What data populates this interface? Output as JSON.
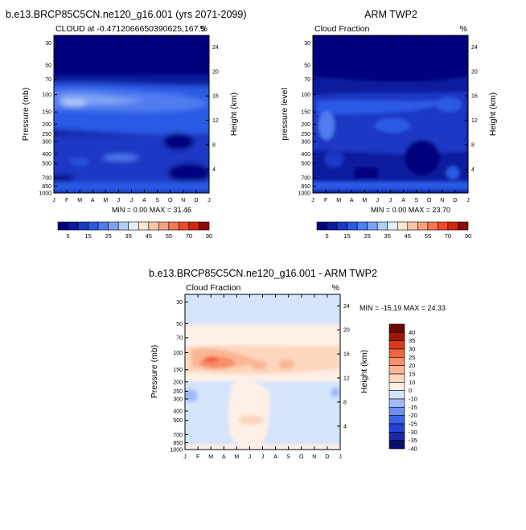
{
  "months": [
    "J",
    "F",
    "M",
    "A",
    "M",
    "J",
    "J",
    "A",
    "S",
    "O",
    "N",
    "D",
    "J"
  ],
  "pressure_ticks": [
    "30",
    "50",
    "70",
    "100",
    "150",
    "200",
    "250",
    "300",
    "400",
    "500",
    "700",
    "850",
    "1000"
  ],
  "height_ticks": [
    "24",
    "20",
    "16",
    "12",
    "8",
    "4"
  ],
  "colors": {
    "abs_palette": [
      "#00007f",
      "#0a1c9e",
      "#1a39c4",
      "#2c5ae6",
      "#4f7cf0",
      "#7ea3f5",
      "#b3cdf8",
      "#e6eefb",
      "#fde5d2",
      "#fbc6a6",
      "#f7a07c",
      "#f47652",
      "#ef4a2c",
      "#d42712",
      "#8f0a03"
    ],
    "diff_palette": [
      "#08106e",
      "#1a2aa5",
      "#2342d2",
      "#3b63e6",
      "#6c8ff0",
      "#9fbaf6",
      "#d4e4fb",
      "#fef0e6",
      "#fdd6bd",
      "#fbb694",
      "#f8906a",
      "#f06440",
      "#d93a1c",
      "#a01808",
      "#6b0602"
    ],
    "abs_field_base": "#0a1c9e"
  },
  "panels": {
    "model": {
      "title": "b.e13.BRCP85C5CN.ne120_g16.001 (yrs 2071-2099)",
      "left_label": "CLOUD at -0.4712066650390625,167.5",
      "right_label": "%",
      "ylabel": "Pressure (mb)",
      "y2label": "Height (km)",
      "stats": "MIN =   0.00 MAX =  31.46",
      "colorbar_labels": [
        "5",
        "15",
        "25",
        "35",
        "45",
        "55",
        "70",
        "90"
      ]
    },
    "obs": {
      "title": "ARM TWP2",
      "left_label": "Cloud Fraction",
      "right_label": "%",
      "ylabel": "pressure level",
      "y2label": "Height (km)",
      "stats": "MIN =   0.00 MAX =  23.70",
      "colorbar_labels": [
        "5",
        "15",
        "25",
        "35",
        "45",
        "55",
        "70",
        "90"
      ]
    },
    "diff": {
      "title": "b.e13.BRCP85C5CN.ne120_g16.001 - ARM TWP2",
      "left_label": "Cloud Fraction",
      "right_label": "%",
      "ylabel": "Pressure (mb)",
      "y2label": "Height (km)",
      "stats": "MIN = -15.19 MAX =  24.33",
      "colorbar_labels": [
        "40",
        "35",
        "30",
        "25",
        "20",
        "15",
        "10",
        "0",
        "-10",
        "-15",
        "-20",
        "-25",
        "-30",
        "-35",
        "-40"
      ]
    }
  },
  "chart_data": [
    {
      "type": "heatmap",
      "title": "b.e13.BRCP85C5CN.ne120_g16.001 (yrs 2071-2099)",
      "subtitle": "CLOUD at -0.4712066650390625,167.5",
      "units": "%",
      "xlabel": "",
      "ylabel": "Pressure (mb)",
      "y2label": "Height (km)",
      "x_categories": [
        "J",
        "F",
        "M",
        "A",
        "M",
        "J",
        "J",
        "A",
        "S",
        "O",
        "N",
        "D",
        "J"
      ],
      "y_levels_mb": [
        30,
        50,
        70,
        100,
        150,
        200,
        250,
        300,
        400,
        500,
        700,
        850,
        1000
      ],
      "height_km": [
        24,
        20,
        16,
        12,
        8,
        4
      ],
      "levels": [
        5,
        10,
        15,
        20,
        25,
        30,
        35,
        40,
        45,
        50,
        55,
        60,
        70,
        80,
        90
      ],
      "min": 0.0,
      "max": 31.46,
      "field_regions": [
        {
          "feature": "upper layer 30-70 mb",
          "value": 2
        },
        {
          "feature": "cloud band near 100-150 mb, max Feb-Apr",
          "value": 28
        },
        {
          "feature": "mid troposphere 200-700 mb",
          "value": 12
        },
        {
          "feature": "minimum near 400 mb Sep-Oct",
          "value": 3
        },
        {
          "feature": "minimum near 700 mb Nov-Dec",
          "value": 3
        },
        {
          "feature": "low cloud near 850 mb",
          "value": 20
        }
      ]
    },
    {
      "type": "heatmap",
      "title": "ARM TWP2",
      "subtitle": "Cloud Fraction",
      "units": "%",
      "xlabel": "",
      "ylabel": "pressure level",
      "y2label": "Height (km)",
      "x_categories": [
        "J",
        "F",
        "M",
        "A",
        "M",
        "J",
        "J",
        "A",
        "S",
        "O",
        "N",
        "D",
        "J"
      ],
      "y_levels_mb": [
        30,
        50,
        70,
        100,
        150,
        200,
        250,
        300,
        400,
        500,
        700,
        850,
        1000
      ],
      "height_km": [
        24,
        20,
        16,
        12,
        8,
        4
      ],
      "levels": [
        5,
        10,
        15,
        20,
        25,
        30,
        35,
        40,
        45,
        50,
        55,
        60,
        70,
        80,
        90
      ],
      "min": 0.0,
      "max": 23.7,
      "field_regions": [
        {
          "feature": "upper layer 30-70 mb",
          "value": 1
        },
        {
          "feature": "cloud band 100-300 mb",
          "value": 15
        },
        {
          "feature": "local maxima near 150-200 mb Feb and Jul-Aug",
          "value": 22
        },
        {
          "feature": "mid troposphere 300-700 mb",
          "value": 10
        },
        {
          "feature": "minima near 400-700 mb Sep-Nov",
          "value": 4
        },
        {
          "feature": "low cloud near 850-1000 mb",
          "value": 14
        }
      ]
    },
    {
      "type": "heatmap",
      "title": "b.e13.BRCP85C5CN.ne120_g16.001 - ARM TWP2",
      "subtitle": "Cloud Fraction",
      "units": "%",
      "xlabel": "",
      "ylabel": "Pressure (mb)",
      "y2label": "Height (km)",
      "x_categories": [
        "J",
        "F",
        "M",
        "A",
        "M",
        "J",
        "J",
        "A",
        "S",
        "O",
        "N",
        "D",
        "J"
      ],
      "y_levels_mb": [
        30,
        50,
        70,
        100,
        150,
        200,
        250,
        300,
        400,
        500,
        700,
        850,
        1000
      ],
      "height_km": [
        24,
        20,
        16,
        12,
        8,
        4
      ],
      "levels": [
        -40,
        -35,
        -30,
        -25,
        -20,
        -15,
        -10,
        0,
        10,
        15,
        20,
        25,
        30,
        35,
        40
      ],
      "min": -15.19,
      "max": 24.33,
      "field_regions": [
        {
          "feature": "upper layer 30-50 mb",
          "value": -2
        },
        {
          "feature": "layer 50-100 mb",
          "value": 3
        },
        {
          "feature": "positive band 100-150 mb, max Mar-Apr",
          "value": 22
        },
        {
          "feature": "secondary maxima near 120 mb Jun-Aug",
          "value": 15
        },
        {
          "feature": "mid troposphere 200-850 mb",
          "value": -3
        },
        {
          "feature": "positive column 300-700 mb Apr-Jul",
          "value": 5
        },
        {
          "feature": "near surface 1000 mb",
          "value": 3
        }
      ]
    }
  ]
}
